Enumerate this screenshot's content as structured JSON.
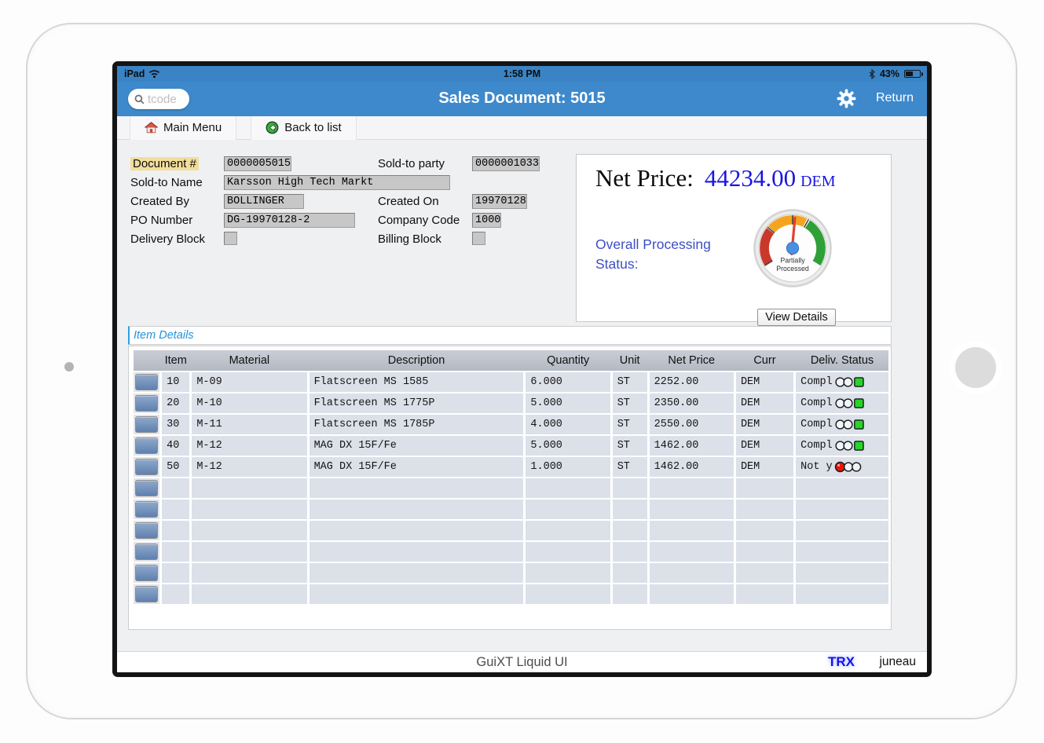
{
  "statusbar": {
    "carrier": "iPad",
    "time": "1:58 PM",
    "battery_percent": "43%"
  },
  "navbar": {
    "search_placeholder": "tcode",
    "title": "Sales Document: 5015",
    "return_label": "Return"
  },
  "toolbar": {
    "main_menu_label": "Main Menu",
    "back_to_list_label": "Back to list"
  },
  "form": {
    "document_label": "Document #",
    "document_value": "0000005015",
    "soldto_party_label": "Sold-to party",
    "soldto_party_value": "0000001033",
    "soldto_name_label": "Sold-to Name",
    "soldto_name_value": "Karsson High Tech Markt",
    "created_by_label": "Created By",
    "created_by_value": "BOLLINGER",
    "created_on_label": "Created On",
    "created_on_value": "19970128",
    "po_number_label": "PO Number",
    "po_number_value": "DG-19970128-2",
    "company_code_label": "Company Code",
    "company_code_value": "1000",
    "delivery_block_label": "Delivery Block",
    "delivery_block_value": "",
    "billing_block_label": "Billing Block",
    "billing_block_value": ""
  },
  "net_price_panel": {
    "label": "Net Price:",
    "value": "44234.00",
    "currency": "DEM",
    "status_label": "Overall Processing Status:",
    "gauge_line1": "Partially",
    "gauge_line2": "Processed",
    "view_details_label": "View Details",
    "value_color": "#1a16e0",
    "gauge_colors": {
      "red": "#c9392b",
      "orange": "#f6a41f",
      "green": "#2fa037",
      "needle": "#e2402e",
      "hub": "#4b8fe2"
    }
  },
  "item_details": {
    "title": "Item Details",
    "columns": [
      "",
      "Item",
      "Material",
      "Description",
      "Quantity",
      "Unit",
      "Net Price",
      "Curr",
      "Deliv. Status"
    ],
    "rows": [
      {
        "item": "10",
        "material": "M-09",
        "description": "Flatscreen MS 1585",
        "quantity": "6.000",
        "unit": "ST",
        "net_price": "2252.00",
        "curr": "DEM",
        "status": "Compl",
        "light": "green"
      },
      {
        "item": "20",
        "material": "M-10",
        "description": "Flatscreen MS 1775P",
        "quantity": "5.000",
        "unit": "ST",
        "net_price": "2350.00",
        "curr": "DEM",
        "status": "Compl",
        "light": "green"
      },
      {
        "item": "30",
        "material": "M-11",
        "description": "Flatscreen MS 1785P",
        "quantity": "4.000",
        "unit": "ST",
        "net_price": "2550.00",
        "curr": "DEM",
        "status": "Compl",
        "light": "green"
      },
      {
        "item": "40",
        "material": "M-12",
        "description": "MAG DX 15F/Fe",
        "quantity": "5.000",
        "unit": "ST",
        "net_price": "1462.00",
        "curr": "DEM",
        "status": "Compl",
        "light": "green"
      },
      {
        "item": "50",
        "material": "M-12",
        "description": "MAG DX 15F/Fe",
        "quantity": "1.000",
        "unit": "ST",
        "net_price": "1462.00",
        "curr": "DEM",
        "status": "Not y",
        "light": "red"
      },
      {
        "item": "",
        "material": "",
        "description": "",
        "quantity": "",
        "unit": "",
        "net_price": "",
        "curr": "",
        "status": "",
        "light": null
      },
      {
        "item": "",
        "material": "",
        "description": "",
        "quantity": "",
        "unit": "",
        "net_price": "",
        "curr": "",
        "status": "",
        "light": null
      },
      {
        "item": "",
        "material": "",
        "description": "",
        "quantity": "",
        "unit": "",
        "net_price": "",
        "curr": "",
        "status": "",
        "light": null
      },
      {
        "item": "",
        "material": "",
        "description": "",
        "quantity": "",
        "unit": "",
        "net_price": "",
        "curr": "",
        "status": "",
        "light": null
      },
      {
        "item": "",
        "material": "",
        "description": "",
        "quantity": "",
        "unit": "",
        "net_price": "",
        "curr": "",
        "status": "",
        "light": null
      },
      {
        "item": "",
        "material": "",
        "description": "",
        "quantity": "",
        "unit": "",
        "net_price": "",
        "curr": "",
        "status": "",
        "light": null
      }
    ],
    "status_light_colors": {
      "green": "#27d427",
      "red": "#ee1208"
    }
  },
  "footer": {
    "center_label": "GuiXT Liquid UI",
    "trx_label": "TRX",
    "user_label": "juneau"
  }
}
